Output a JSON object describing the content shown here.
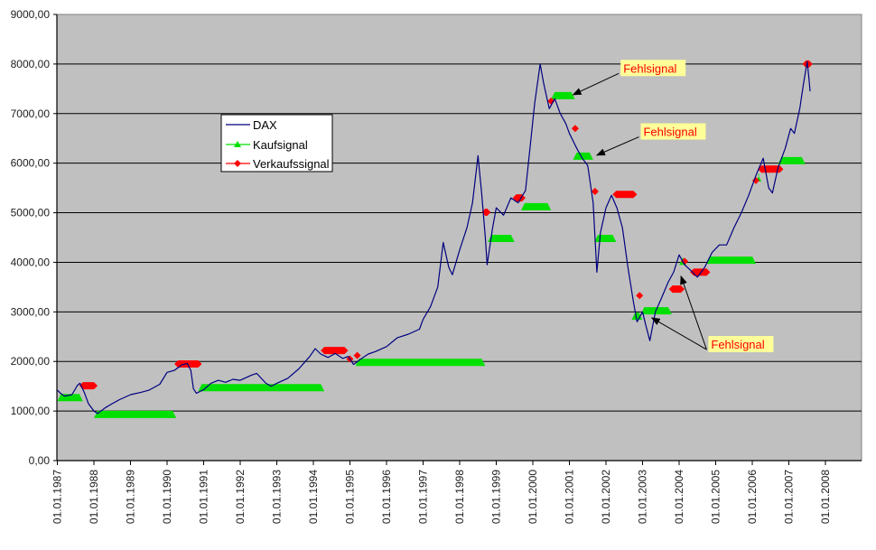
{
  "chart_data": {
    "type": "line",
    "title": "",
    "xlabel": "",
    "ylabel": "",
    "xlim": [
      1987.0,
      2009.0
    ],
    "ylim": [
      0,
      9000
    ],
    "grid": true,
    "legend_placement": "center-left",
    "y_ticks": [
      {
        "value": 0,
        "label": "0,00"
      },
      {
        "value": 1000,
        "label": "1000,00"
      },
      {
        "value": 2000,
        "label": "2000,00"
      },
      {
        "value": 3000,
        "label": "3000,00"
      },
      {
        "value": 4000,
        "label": "4000,00"
      },
      {
        "value": 5000,
        "label": "5000,00"
      },
      {
        "value": 6000,
        "label": "6000,00"
      },
      {
        "value": 7000,
        "label": "7000,00"
      },
      {
        "value": 8000,
        "label": "8000,00"
      },
      {
        "value": 9000,
        "label": "9000,00"
      }
    ],
    "x_ticks": [
      {
        "value": 1987,
        "label": "01.01.1987"
      },
      {
        "value": 1988,
        "label": "01.01.1988"
      },
      {
        "value": 1989,
        "label": "01.01.1989"
      },
      {
        "value": 1990,
        "label": "01.01.1990"
      },
      {
        "value": 1991,
        "label": "01.01.1991"
      },
      {
        "value": 1992,
        "label": "01.01.1992"
      },
      {
        "value": 1993,
        "label": "01.01.1993"
      },
      {
        "value": 1994,
        "label": "01.01.1994"
      },
      {
        "value": 1995,
        "label": "01.01.1995"
      },
      {
        "value": 1996,
        "label": "01.01.1996"
      },
      {
        "value": 1997,
        "label": "01.01.1997"
      },
      {
        "value": 1998,
        "label": "01.01.1998"
      },
      {
        "value": 1999,
        "label": "01.01.1999"
      },
      {
        "value": 2000,
        "label": "01.01.2000"
      },
      {
        "value": 2001,
        "label": "01.01.2001"
      },
      {
        "value": 2002,
        "label": "01.01.2002"
      },
      {
        "value": 2003,
        "label": "01.01.2003"
      },
      {
        "value": 2004,
        "label": "01.01.2004"
      },
      {
        "value": 2005,
        "label": "01.01.2005"
      },
      {
        "value": 2006,
        "label": "01.01.2006"
      },
      {
        "value": 2007,
        "label": "01.01.2007"
      },
      {
        "value": 2008,
        "label": "01.01.2008"
      }
    ],
    "series": [
      {
        "name": "DAX",
        "color": "#000080",
        "points": [
          [
            1987.0,
            1420
          ],
          [
            1987.1,
            1350
          ],
          [
            1987.2,
            1300
          ],
          [
            1987.4,
            1330
          ],
          [
            1987.55,
            1520
          ],
          [
            1987.62,
            1560
          ],
          [
            1987.75,
            1350
          ],
          [
            1987.85,
            1150
          ],
          [
            1988.0,
            1000
          ],
          [
            1988.1,
            950
          ],
          [
            1988.3,
            1060
          ],
          [
            1988.5,
            1150
          ],
          [
            1988.7,
            1230
          ],
          [
            1989.0,
            1330
          ],
          [
            1989.3,
            1380
          ],
          [
            1989.5,
            1420
          ],
          [
            1989.8,
            1540
          ],
          [
            1990.0,
            1780
          ],
          [
            1990.2,
            1820
          ],
          [
            1990.4,
            1930
          ],
          [
            1990.55,
            1960
          ],
          [
            1990.65,
            1820
          ],
          [
            1990.72,
            1450
          ],
          [
            1990.8,
            1360
          ],
          [
            1991.0,
            1430
          ],
          [
            1991.2,
            1560
          ],
          [
            1991.4,
            1620
          ],
          [
            1991.6,
            1580
          ],
          [
            1991.8,
            1640
          ],
          [
            1992.0,
            1620
          ],
          [
            1992.3,
            1720
          ],
          [
            1992.45,
            1760
          ],
          [
            1992.7,
            1560
          ],
          [
            1992.85,
            1500
          ],
          [
            1993.0,
            1560
          ],
          [
            1993.3,
            1660
          ],
          [
            1993.6,
            1850
          ],
          [
            1993.9,
            2100
          ],
          [
            1994.05,
            2260
          ],
          [
            1994.2,
            2150
          ],
          [
            1994.4,
            2080
          ],
          [
            1994.6,
            2160
          ],
          [
            1994.8,
            2060
          ],
          [
            1994.95,
            2100
          ],
          [
            1995.1,
            1940
          ],
          [
            1995.3,
            2050
          ],
          [
            1995.5,
            2150
          ],
          [
            1995.7,
            2200
          ],
          [
            1996.0,
            2300
          ],
          [
            1996.3,
            2480
          ],
          [
            1996.6,
            2550
          ],
          [
            1996.9,
            2650
          ],
          [
            1997.0,
            2850
          ],
          [
            1997.2,
            3100
          ],
          [
            1997.4,
            3500
          ],
          [
            1997.55,
            4400
          ],
          [
            1997.7,
            3900
          ],
          [
            1997.8,
            3750
          ],
          [
            1998.0,
            4250
          ],
          [
            1998.2,
            4700
          ],
          [
            1998.35,
            5200
          ],
          [
            1998.5,
            6150
          ],
          [
            1998.6,
            5400
          ],
          [
            1998.7,
            4500
          ],
          [
            1998.75,
            3950
          ],
          [
            1998.9,
            4700
          ],
          [
            1999.0,
            5100
          ],
          [
            1999.2,
            4950
          ],
          [
            1999.4,
            5300
          ],
          [
            1999.6,
            5200
          ],
          [
            1999.8,
            5450
          ],
          [
            1999.95,
            6500
          ],
          [
            2000.05,
            7200
          ],
          [
            2000.2,
            8000
          ],
          [
            2000.3,
            7600
          ],
          [
            2000.45,
            7100
          ],
          [
            2000.6,
            7300
          ],
          [
            2000.75,
            7000
          ],
          [
            2000.9,
            6800
          ],
          [
            2001.0,
            6600
          ],
          [
            2001.2,
            6300
          ],
          [
            2001.35,
            6100
          ],
          [
            2001.5,
            5950
          ],
          [
            2001.65,
            5200
          ],
          [
            2001.75,
            3800
          ],
          [
            2001.85,
            4600
          ],
          [
            2002.0,
            5100
          ],
          [
            2002.15,
            5350
          ],
          [
            2002.3,
            5100
          ],
          [
            2002.45,
            4700
          ],
          [
            2002.6,
            3900
          ],
          [
            2002.75,
            3200
          ],
          [
            2002.85,
            2800
          ],
          [
            2003.0,
            3000
          ],
          [
            2003.1,
            2700
          ],
          [
            2003.2,
            2420
          ],
          [
            2003.35,
            3000
          ],
          [
            2003.5,
            3250
          ],
          [
            2003.7,
            3600
          ],
          [
            2003.85,
            3800
          ],
          [
            2004.0,
            4150
          ],
          [
            2004.15,
            3950
          ],
          [
            2004.3,
            3850
          ],
          [
            2004.5,
            3700
          ],
          [
            2004.7,
            3900
          ],
          [
            2004.9,
            4200
          ],
          [
            2005.1,
            4350
          ],
          [
            2005.3,
            4350
          ],
          [
            2005.5,
            4700
          ],
          [
            2005.7,
            5000
          ],
          [
            2005.9,
            5350
          ],
          [
            2006.1,
            5750
          ],
          [
            2006.3,
            6100
          ],
          [
            2006.45,
            5500
          ],
          [
            2006.55,
            5400
          ],
          [
            2006.7,
            5900
          ],
          [
            2006.9,
            6300
          ],
          [
            2007.05,
            6700
          ],
          [
            2007.15,
            6600
          ],
          [
            2007.3,
            7100
          ],
          [
            2007.4,
            7600
          ],
          [
            2007.5,
            8050
          ],
          [
            2007.55,
            7700
          ],
          [
            2007.58,
            7450
          ]
        ]
      },
      {
        "name": "Kaufsignal",
        "color": "#00E000",
        "marker": "triangle",
        "segments": [
          [
            1987.0,
            1987.7,
            1290
          ],
          [
            1988.0,
            1990.25,
            950
          ],
          [
            1990.85,
            1994.3,
            1490
          ],
          [
            1995.15,
            1998.7,
            2000
          ],
          [
            1998.77,
            1999.5,
            4500
          ],
          [
            1999.68,
            2000.5,
            5140
          ],
          [
            2000.5,
            2001.15,
            7380
          ],
          [
            2001.1,
            2001.65,
            6160
          ],
          [
            2001.68,
            2002.28,
            4500
          ],
          [
            2002.7,
            2003.0,
            2930
          ],
          [
            2002.95,
            2003.8,
            3040
          ],
          [
            2004.0,
            2004.2,
            4040
          ],
          [
            2004.75,
            2006.1,
            4060
          ],
          [
            2006.1,
            2006.25,
            5720
          ],
          [
            2006.7,
            2007.45,
            6070
          ]
        ]
      },
      {
        "name": "Verkaufssignal",
        "color": "#FF0000",
        "marker": "diamond",
        "segments": [
          [
            1987.6,
            1988.1,
            1510
          ],
          [
            1990.2,
            1990.95,
            1950
          ],
          [
            1994.2,
            1994.95,
            2220
          ],
          [
            1994.9,
            1995.0,
            2050
          ],
          [
            1995.1,
            1995.2,
            2120
          ],
          [
            1998.6,
            1998.85,
            5010
          ],
          [
            1999.45,
            1999.8,
            5300
          ],
          [
            2000.4,
            2000.6,
            7250
          ],
          [
            2001.06,
            2001.2,
            6700
          ],
          [
            2001.6,
            2001.8,
            5430
          ],
          [
            2002.18,
            2002.85,
            5370
          ],
          [
            2002.82,
            2002.9,
            3330
          ],
          [
            2003.72,
            2004.15,
            3460
          ],
          [
            2004.05,
            2004.25,
            4020
          ],
          [
            2004.3,
            2004.85,
            3800
          ],
          [
            2006.0,
            2006.1,
            5650
          ],
          [
            2006.15,
            2006.85,
            5880
          ],
          [
            2007.37,
            2007.65,
            8000
          ]
        ]
      }
    ],
    "legend": [
      "DAX",
      "Kaufsignal",
      "Verkaufssignal"
    ],
    "annotations": [
      {
        "text": "Fehlsignal",
        "anchor": [
          2002.4,
          7920
        ],
        "targets": [
          [
            2001.1,
            7380
          ]
        ]
      },
      {
        "text": "Fehlsignal",
        "anchor": [
          2002.95,
          6640
        ],
        "targets": [
          [
            2001.75,
            6160
          ]
        ]
      },
      {
        "text": "Fehlsignal",
        "anchor": [
          2004.8,
          2350
        ],
        "targets": [
          [
            2003.25,
            2880
          ],
          [
            2004.05,
            3720
          ]
        ]
      }
    ],
    "colors": {
      "plot_bg": "#C0C0C0",
      "grid": "#000000",
      "annotation_bg": "#FFFF99",
      "annotation_text": "#FF0000"
    }
  }
}
